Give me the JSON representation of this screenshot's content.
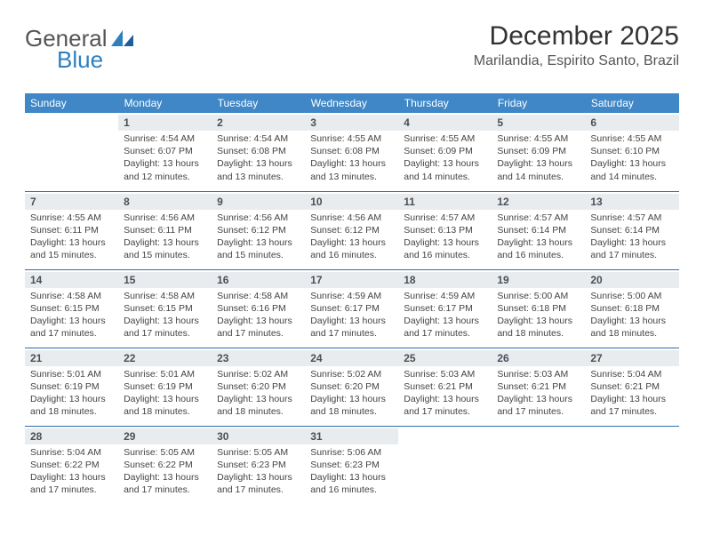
{
  "logo": {
    "text1": "General",
    "text2": "Blue"
  },
  "title": "December 2025",
  "location": "Marilandia, Espirito Santo, Brazil",
  "colors": {
    "header_bg": "#3f87c6",
    "header_text": "#ffffff",
    "daynum_bg": "#e9ecef",
    "daynum_text": "#495057",
    "rule": "#2f6fa8",
    "body_text": "#444444",
    "logo_accent": "#2f7fbf"
  },
  "weekdays": [
    "Sunday",
    "Monday",
    "Tuesday",
    "Wednesday",
    "Thursday",
    "Friday",
    "Saturday"
  ],
  "weeks": [
    {
      "cells": [
        {
          "n": "",
          "sunrise": "",
          "sunset": "",
          "daylight": "",
          "empty": true
        },
        {
          "n": "1",
          "sunrise": "Sunrise: 4:54 AM",
          "sunset": "Sunset: 6:07 PM",
          "daylight": "Daylight: 13 hours and 12 minutes."
        },
        {
          "n": "2",
          "sunrise": "Sunrise: 4:54 AM",
          "sunset": "Sunset: 6:08 PM",
          "daylight": "Daylight: 13 hours and 13 minutes."
        },
        {
          "n": "3",
          "sunrise": "Sunrise: 4:55 AM",
          "sunset": "Sunset: 6:08 PM",
          "daylight": "Daylight: 13 hours and 13 minutes."
        },
        {
          "n": "4",
          "sunrise": "Sunrise: 4:55 AM",
          "sunset": "Sunset: 6:09 PM",
          "daylight": "Daylight: 13 hours and 14 minutes."
        },
        {
          "n": "5",
          "sunrise": "Sunrise: 4:55 AM",
          "sunset": "Sunset: 6:09 PM",
          "daylight": "Daylight: 13 hours and 14 minutes."
        },
        {
          "n": "6",
          "sunrise": "Sunrise: 4:55 AM",
          "sunset": "Sunset: 6:10 PM",
          "daylight": "Daylight: 13 hours and 14 minutes."
        }
      ]
    },
    {
      "cells": [
        {
          "n": "7",
          "sunrise": "Sunrise: 4:55 AM",
          "sunset": "Sunset: 6:11 PM",
          "daylight": "Daylight: 13 hours and 15 minutes."
        },
        {
          "n": "8",
          "sunrise": "Sunrise: 4:56 AM",
          "sunset": "Sunset: 6:11 PM",
          "daylight": "Daylight: 13 hours and 15 minutes."
        },
        {
          "n": "9",
          "sunrise": "Sunrise: 4:56 AM",
          "sunset": "Sunset: 6:12 PM",
          "daylight": "Daylight: 13 hours and 15 minutes."
        },
        {
          "n": "10",
          "sunrise": "Sunrise: 4:56 AM",
          "sunset": "Sunset: 6:12 PM",
          "daylight": "Daylight: 13 hours and 16 minutes."
        },
        {
          "n": "11",
          "sunrise": "Sunrise: 4:57 AM",
          "sunset": "Sunset: 6:13 PM",
          "daylight": "Daylight: 13 hours and 16 minutes."
        },
        {
          "n": "12",
          "sunrise": "Sunrise: 4:57 AM",
          "sunset": "Sunset: 6:14 PM",
          "daylight": "Daylight: 13 hours and 16 minutes."
        },
        {
          "n": "13",
          "sunrise": "Sunrise: 4:57 AM",
          "sunset": "Sunset: 6:14 PM",
          "daylight": "Daylight: 13 hours and 17 minutes."
        }
      ]
    },
    {
      "cells": [
        {
          "n": "14",
          "sunrise": "Sunrise: 4:58 AM",
          "sunset": "Sunset: 6:15 PM",
          "daylight": "Daylight: 13 hours and 17 minutes."
        },
        {
          "n": "15",
          "sunrise": "Sunrise: 4:58 AM",
          "sunset": "Sunset: 6:15 PM",
          "daylight": "Daylight: 13 hours and 17 minutes."
        },
        {
          "n": "16",
          "sunrise": "Sunrise: 4:58 AM",
          "sunset": "Sunset: 6:16 PM",
          "daylight": "Daylight: 13 hours and 17 minutes."
        },
        {
          "n": "17",
          "sunrise": "Sunrise: 4:59 AM",
          "sunset": "Sunset: 6:17 PM",
          "daylight": "Daylight: 13 hours and 17 minutes."
        },
        {
          "n": "18",
          "sunrise": "Sunrise: 4:59 AM",
          "sunset": "Sunset: 6:17 PM",
          "daylight": "Daylight: 13 hours and 17 minutes."
        },
        {
          "n": "19",
          "sunrise": "Sunrise: 5:00 AM",
          "sunset": "Sunset: 6:18 PM",
          "daylight": "Daylight: 13 hours and 18 minutes."
        },
        {
          "n": "20",
          "sunrise": "Sunrise: 5:00 AM",
          "sunset": "Sunset: 6:18 PM",
          "daylight": "Daylight: 13 hours and 18 minutes."
        }
      ]
    },
    {
      "cells": [
        {
          "n": "21",
          "sunrise": "Sunrise: 5:01 AM",
          "sunset": "Sunset: 6:19 PM",
          "daylight": "Daylight: 13 hours and 18 minutes."
        },
        {
          "n": "22",
          "sunrise": "Sunrise: 5:01 AM",
          "sunset": "Sunset: 6:19 PM",
          "daylight": "Daylight: 13 hours and 18 minutes."
        },
        {
          "n": "23",
          "sunrise": "Sunrise: 5:02 AM",
          "sunset": "Sunset: 6:20 PM",
          "daylight": "Daylight: 13 hours and 18 minutes."
        },
        {
          "n": "24",
          "sunrise": "Sunrise: 5:02 AM",
          "sunset": "Sunset: 6:20 PM",
          "daylight": "Daylight: 13 hours and 18 minutes."
        },
        {
          "n": "25",
          "sunrise": "Sunrise: 5:03 AM",
          "sunset": "Sunset: 6:21 PM",
          "daylight": "Daylight: 13 hours and 17 minutes."
        },
        {
          "n": "26",
          "sunrise": "Sunrise: 5:03 AM",
          "sunset": "Sunset: 6:21 PM",
          "daylight": "Daylight: 13 hours and 17 minutes."
        },
        {
          "n": "27",
          "sunrise": "Sunrise: 5:04 AM",
          "sunset": "Sunset: 6:21 PM",
          "daylight": "Daylight: 13 hours and 17 minutes."
        }
      ]
    },
    {
      "cells": [
        {
          "n": "28",
          "sunrise": "Sunrise: 5:04 AM",
          "sunset": "Sunset: 6:22 PM",
          "daylight": "Daylight: 13 hours and 17 minutes."
        },
        {
          "n": "29",
          "sunrise": "Sunrise: 5:05 AM",
          "sunset": "Sunset: 6:22 PM",
          "daylight": "Daylight: 13 hours and 17 minutes."
        },
        {
          "n": "30",
          "sunrise": "Sunrise: 5:05 AM",
          "sunset": "Sunset: 6:23 PM",
          "daylight": "Daylight: 13 hours and 17 minutes."
        },
        {
          "n": "31",
          "sunrise": "Sunrise: 5:06 AM",
          "sunset": "Sunset: 6:23 PM",
          "daylight": "Daylight: 13 hours and 16 minutes."
        },
        {
          "n": "",
          "sunrise": "",
          "sunset": "",
          "daylight": "",
          "empty": true
        },
        {
          "n": "",
          "sunrise": "",
          "sunset": "",
          "daylight": "",
          "empty": true
        },
        {
          "n": "",
          "sunrise": "",
          "sunset": "",
          "daylight": "",
          "empty": true
        }
      ]
    }
  ]
}
